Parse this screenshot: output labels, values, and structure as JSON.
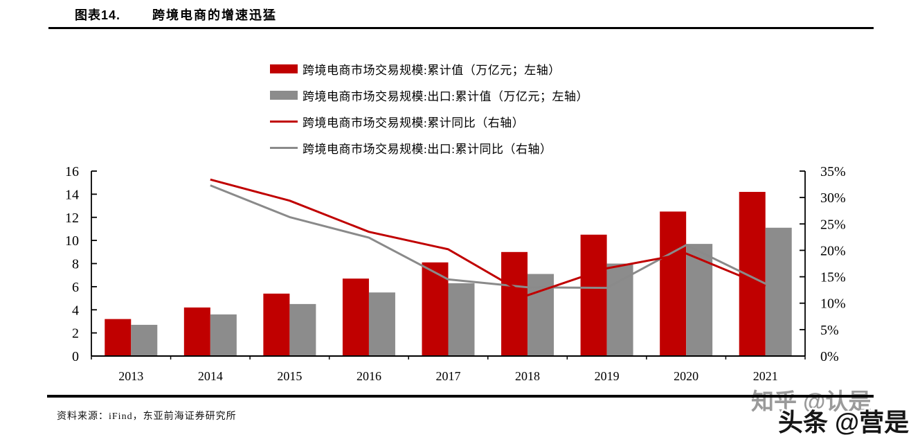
{
  "header": {
    "index_label": "图表14.",
    "title": "跨境电商的增速迅猛"
  },
  "legend": {
    "items": [
      {
        "label": "跨境电商市场交易规模:累计值（万亿元；左轴）",
        "marker": "bar",
        "color": "#c00000"
      },
      {
        "label": "跨境电商市场交易规模:出口:累计值（万亿元；左轴）",
        "marker": "bar",
        "color": "#8c8c8c"
      },
      {
        "label": "跨境电商市场交易规模:累计同比（右轴）",
        "marker": "line",
        "color": "#c00000"
      },
      {
        "label": "跨境电商市场交易规模:出口:累计同比（右轴）",
        "marker": "line",
        "color": "#8a8a8a"
      }
    ]
  },
  "chart_data": {
    "type": "bar",
    "subtype": "combo-bar-line-dual-axis",
    "title": "跨境电商的增速迅猛",
    "categories": [
      "2013",
      "2014",
      "2015",
      "2016",
      "2017",
      "2018",
      "2019",
      "2020",
      "2021"
    ],
    "series": [
      {
        "name": "跨境电商市场交易规模:累计值（万亿元；左轴）",
        "type": "bar",
        "axis": "left",
        "color": "#c00000",
        "values": [
          3.2,
          4.2,
          5.4,
          6.7,
          8.1,
          9.0,
          10.5,
          12.5,
          14.2
        ]
      },
      {
        "name": "跨境电商市场交易规模:出口:累计值（万亿元；左轴）",
        "type": "bar",
        "axis": "left",
        "color": "#8c8c8c",
        "values": [
          2.7,
          3.6,
          4.5,
          5.5,
          6.3,
          7.1,
          8.0,
          9.7,
          11.1
        ]
      },
      {
        "name": "跨境电商市场交易规模:累计同比（右轴）",
        "type": "line",
        "axis": "right",
        "color": "#c00000",
        "values": [
          null,
          33.4,
          29.4,
          23.5,
          20.2,
          11.5,
          16.6,
          19.4,
          13.2
        ]
      },
      {
        "name": "跨境电商市场交易规模:出口:累计同比（右轴）",
        "type": "line",
        "axis": "right",
        "color": "#8a8a8a",
        "values": [
          null,
          32.3,
          26.3,
          22.4,
          14.5,
          13.0,
          12.9,
          21.0,
          13.7
        ]
      }
    ],
    "left_axis": {
      "min": 0,
      "max": 16,
      "step": 2,
      "tick_labels": [
        "0",
        "2",
        "4",
        "6",
        "8",
        "10",
        "12",
        "14",
        "16"
      ]
    },
    "right_axis": {
      "min": 0,
      "max": 35,
      "step": 5,
      "tick_labels": [
        "0%",
        "5%",
        "10%",
        "15%",
        "20%",
        "25%",
        "30%",
        "35%"
      ]
    },
    "grid": false,
    "legend_position": "top-center"
  },
  "footer": {
    "source": "资料来源：iFind，东亚前海证券研究所"
  },
  "watermarks": {
    "upper": "知乎 @认是",
    "lower": "头条 @营是"
  }
}
